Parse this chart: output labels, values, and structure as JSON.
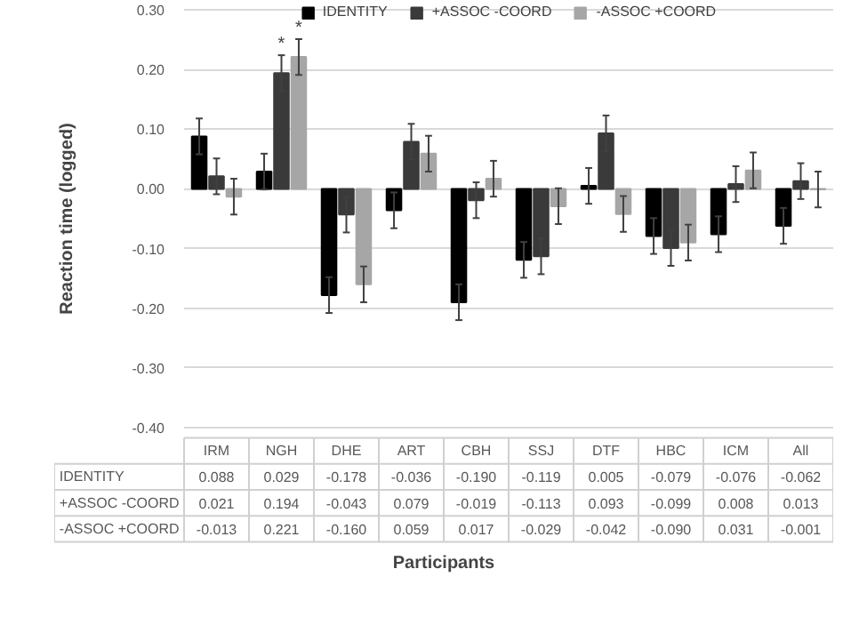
{
  "chart_data": {
    "type": "bar",
    "ylabel": "Reaction time (logged)",
    "categories": [
      "IRM",
      "NGH",
      "DHE",
      "ART",
      "CBH",
      "SSJ",
      "DTF",
      "HBC",
      "ICM",
      "All"
    ],
    "series": [
      {
        "name": "IDENTITY",
        "color": "#000000",
        "values": [
          0.088,
          0.029,
          -0.178,
          -0.036,
          -0.19,
          -0.119,
          0.005,
          -0.079,
          -0.076,
          -0.062
        ],
        "value_labels": [
          "0.088",
          "0.029",
          "-0.178",
          "-0.036",
          "-0.190",
          "-0.119",
          "0.005",
          "-0.079",
          "-0.076",
          "-0.062"
        ],
        "errors": [
          0.03,
          0.03,
          0.03,
          0.03,
          0.03,
          0.03,
          0.03,
          0.03,
          0.03,
          0.03
        ]
      },
      {
        "name": "+ASSOC -COORD",
        "color": "#3a3a3a",
        "values": [
          0.021,
          0.194,
          -0.043,
          0.079,
          -0.019,
          -0.113,
          0.093,
          -0.099,
          0.008,
          0.013
        ],
        "value_labels": [
          "0.021",
          "0.194",
          "-0.043",
          "0.079",
          "-0.019",
          "-0.113",
          "0.093",
          "-0.099",
          "0.008",
          "0.013"
        ],
        "errors": [
          0.03,
          0.03,
          0.03,
          0.03,
          0.03,
          0.03,
          0.03,
          0.03,
          0.03,
          0.03
        ]
      },
      {
        "name": "-ASSOC +COORD",
        "color": "#a6a6a6",
        "values": [
          -0.013,
          0.221,
          -0.16,
          0.059,
          0.017,
          -0.029,
          -0.042,
          -0.09,
          0.031,
          -0.001
        ],
        "value_labels": [
          "-0.013",
          "0.221",
          "-0.160",
          "0.059",
          "0.017",
          "-0.029",
          "-0.042",
          "-0.090",
          "0.031",
          "-0.001"
        ],
        "errors": [
          0.03,
          0.03,
          0.03,
          0.03,
          0.03,
          0.03,
          0.03,
          0.03,
          0.03,
          0.03
        ]
      }
    ],
    "annotations": [
      {
        "text": "*",
        "x": "NGH",
        "y": 0.194
      },
      {
        "text": "*",
        "x": "NGH",
        "y": 0.221
      },
      "Participants"
    ],
    "ylim": [
      -0.4,
      0.3
    ],
    "yticks": [
      {
        "value": -0.4,
        "label": "-0.40"
      },
      {
        "value": -0.3,
        "label": "-0.30"
      },
      {
        "value": -0.2,
        "label": "-0.20"
      },
      {
        "value": -0.1,
        "label": "-0.10"
      },
      {
        "value": 0,
        "label": "0.00"
      },
      {
        "value": 0.1,
        "label": "0.10"
      },
      {
        "value": 0.2,
        "label": "0.20"
      },
      {
        "value": 0.3,
        "label": "0.30"
      }
    ],
    "grid": "y",
    "legend": "top"
  }
}
